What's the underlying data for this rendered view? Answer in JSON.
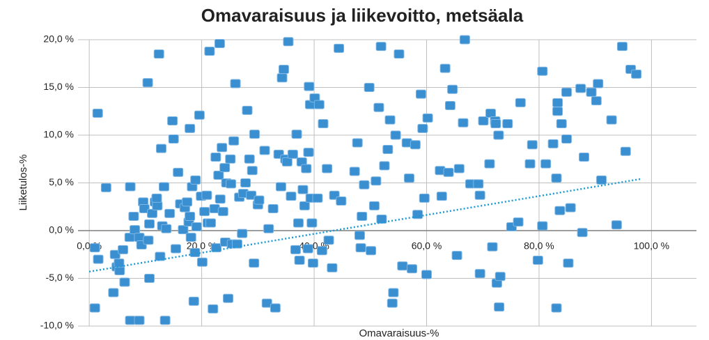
{
  "chart_data": {
    "type": "scatter",
    "title": "Omavaraisuus ja liikevoitto, metsäala",
    "xlabel": "Omavaraisuus-%",
    "ylabel": "Liiketulos-%",
    "color": "#3a8fd0",
    "xlim": [
      -2,
      108
    ],
    "ylim": [
      -10,
      20
    ],
    "xticks": [
      {
        "value": 0,
        "label": "0,0 %"
      },
      {
        "value": 20,
        "label": "20,0 %"
      },
      {
        "value": 40,
        "label": "40,0 %"
      },
      {
        "value": 60,
        "label": "60,0 %"
      },
      {
        "value": 80,
        "label": "80,0 %"
      },
      {
        "value": 100,
        "label": "100,0 %"
      }
    ],
    "yticks": [
      {
        "value": -10,
        "label": "-10,0 %"
      },
      {
        "value": -5,
        "label": "-5,0 %"
      },
      {
        "value": 0,
        "label": "0,0 %"
      },
      {
        "value": 5,
        "label": "5,0 %"
      },
      {
        "value": 10,
        "label": "10,0 %"
      },
      {
        "value": 15,
        "label": "15,0 %"
      },
      {
        "value": 20,
        "label": "20,0 %"
      }
    ],
    "grid": true,
    "x": [
      1.0,
      1.5,
      1.6,
      1.0,
      3.0,
      4.3,
      4.6,
      4.9,
      5.4,
      6.0,
      6.3,
      5.3,
      7.3,
      7.2,
      7.3,
      8.9,
      7.9,
      8.1,
      8.9,
      9.3,
      9.6,
      9.8,
      10.4,
      10.7,
      10.7,
      10.5,
      11.2,
      11.7,
      12.1,
      12.0,
      12.4,
      12.6,
      12.8,
      13.0,
      13.5,
      13.3,
      13.7,
      14.3,
      14.8,
      15.0,
      15.4,
      15.8,
      16.2,
      16.7,
      17.0,
      17.4,
      17.7,
      17.9,
      17.9,
      18.1,
      18.3,
      18.6,
      18.8,
      18.9,
      19.1,
      19.6,
      19.9,
      20.1,
      20.5,
      20.9,
      21.1,
      21.4,
      21.6,
      22.0,
      22.3,
      22.5,
      22.6,
      23.0,
      23.2,
      23.3,
      23.6,
      23.8,
      24.1,
      24.2,
      24.4,
      24.7,
      25.1,
      25.2,
      25.4,
      25.7,
      26.0,
      26.3,
      26.7,
      27.2,
      27.4,
      27.8,
      28.1,
      28.5,
      28.8,
      29.0,
      29.3,
      29.4,
      30.0,
      30.2,
      31.2,
      31.6,
      31.9,
      32.7,
      33.1,
      33.7,
      34.1,
      34.3,
      34.6,
      34.9,
      35.2,
      35.4,
      35.9,
      36.2,
      36.7,
      36.9,
      37.2,
      37.4,
      37.8,
      38.0,
      38.3,
      38.6,
      38.9,
      39.0,
      39.1,
      39.4,
      39.3,
      39.6,
      39.8,
      40.1,
      40.6,
      40.9,
      41.4,
      41.6,
      42.3,
      42.6,
      43.2,
      43.6,
      44.4,
      44.8,
      47.2,
      47.7,
      48.1,
      48.3,
      48.5,
      48.9,
      49.8,
      50.1,
      50.7,
      51.0,
      51.5,
      51.9,
      52.0,
      52.5,
      53.1,
      53.5,
      53.9,
      54.1,
      54.5,
      55.1,
      55.7,
      56.5,
      56.9,
      57.4,
      58.0,
      58.4,
      59.0,
      59.3,
      59.6,
      60.0,
      60.2,
      62.4,
      62.7,
      63.3,
      63.9,
      64.2,
      64.6,
      65.4,
      65.8,
      66.5,
      66.8,
      67.8,
      69.2,
      69.5,
      69.5,
      70.1,
      71.2,
      71.4,
      71.7,
      72.2,
      72.3,
      72.5,
      72.8,
      72.9,
      73.1,
      74.4,
      75.1,
      76.3,
      76.7,
      78.4,
      78.8,
      79.8,
      80.6,
      80.6,
      81.2,
      82.5,
      83.1,
      83.1,
      83.3,
      83.3,
      83.7,
      84.0,
      84.9,
      84.9,
      85.2,
      85.6,
      87.4,
      87.7,
      88.0,
      89.3,
      90.5,
      90.2,
      91.1,
      92.9,
      93.8,
      94.8,
      95.4,
      96.3,
      97.3
    ],
    "y": [
      -1.8,
      12.3,
      -3.0,
      -8.1,
      4.5,
      -6.5,
      -2.5,
      -3.8,
      -4.2,
      -2.0,
      -5.4,
      -3.4,
      4.6,
      -0.7,
      -9.4,
      -9.4,
      1.5,
      0.1,
      -0.7,
      -1.5,
      3.0,
      2.3,
      15.5,
      -5.0,
      0.7,
      -1.0,
      1.8,
      3.0,
      2.6,
      3.4,
      18.5,
      -2.7,
      8.6,
      0.5,
      -9.4,
      4.6,
      0.2,
      1.8,
      11.5,
      9.6,
      -1.9,
      6.1,
      2.8,
      0.1,
      2.4,
      3.0,
      0.9,
      10.7,
      1.5,
      -0.7,
      4.6,
      -7.4,
      -2.3,
      5.3,
      0.4,
      12.1,
      3.6,
      -3.3,
      2.0,
      3.7,
      0.8,
      18.8,
      0.8,
      -8.2,
      2.3,
      7.7,
      -1.8,
      5.8,
      19.6,
      3.3,
      8.7,
      2.0,
      6.6,
      -1.2,
      5.0,
      -7.1,
      7.5,
      4.9,
      -1.4,
      9.4,
      15.4,
      -1.4,
      3.5,
      -0.3,
      3.9,
      5.0,
      12.6,
      7.5,
      3.7,
      6.3,
      -3.4,
      10.1,
      2.7,
      3.2,
      8.4,
      -7.6,
      0.2,
      2.3,
      -8.1,
      8.0,
      4.6,
      16.0,
      16.9,
      7.5,
      7.2,
      19.8,
      3.6,
      8.0,
      -2.0,
      10.1,
      0.8,
      -3.1,
      7.2,
      4.3,
      2.6,
      6.5,
      -1.9,
      8.2,
      15.1,
      3.4,
      13.2,
      0.8,
      -3.4,
      13.9,
      3.4,
      13.2,
      -2.1,
      11.2,
      6.5,
      -1.0,
      -3.9,
      3.7,
      19.1,
      3.1,
      6.2,
      9.2,
      -0.5,
      -1.8,
      1.5,
      4.8,
      15.0,
      -2.1,
      2.6,
      5.2,
      12.9,
      19.3,
      1.2,
      6.8,
      8.5,
      11.6,
      -7.6,
      -6.5,
      10.0,
      18.5,
      -3.7,
      9.2,
      5.5,
      -4.0,
      9.0,
      1.7,
      14.3,
      10.7,
      3.4,
      -4.6,
      11.8,
      6.3,
      3.6,
      17.0,
      6.1,
      13.1,
      14.8,
      -2.6,
      6.5,
      11.3,
      20.0,
      4.9,
      4.9,
      3.7,
      -4.5,
      11.5,
      7.0,
      12.3,
      -1.7,
      11.5,
      11.2,
      -5.5,
      10.0,
      -8.0,
      -4.8,
      11.2,
      0.4,
      0.9,
      13.4,
      7.0,
      9.0,
      -3.1,
      16.7,
      0.5,
      7.0,
      9.1,
      5.5,
      -8.1,
      13.4,
      12.5,
      2.1,
      11.2,
      9.6,
      14.5,
      -3.4,
      2.4,
      14.9,
      -0.2,
      7.7,
      14.5,
      15.4,
      13.6,
      5.3,
      11.6,
      0.6,
      19.3,
      8.3,
      16.9,
      16.4
    ],
    "trendline": {
      "x": [
        0,
        98
      ],
      "y": [
        -4.3,
        5.4
      ],
      "color": "#1a9ad6"
    }
  }
}
